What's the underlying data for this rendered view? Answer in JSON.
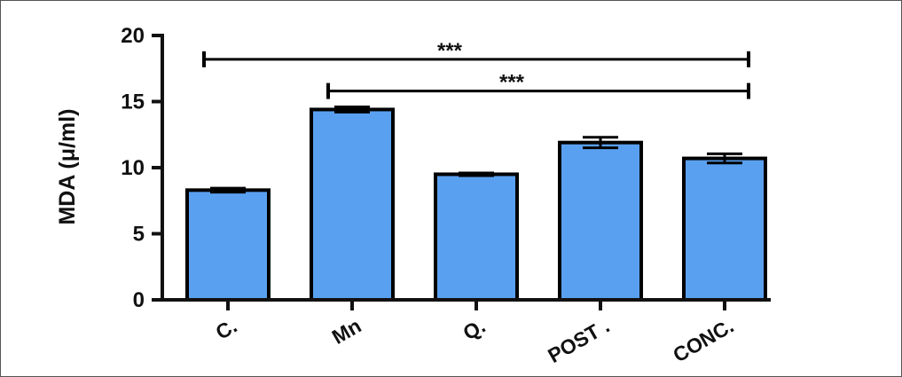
{
  "chart_data": {
    "type": "bar",
    "title": "",
    "xlabel": "",
    "ylabel": "MDA (μ/ml)",
    "ylim": [
      0,
      20
    ],
    "yticks": [
      0,
      5,
      10,
      15,
      20
    ],
    "categories": [
      "C.",
      "Mn",
      "Q.",
      "POST .",
      "CONC."
    ],
    "values": [
      8.3,
      14.4,
      9.5,
      11.9,
      10.7
    ],
    "errors": [
      0.15,
      0.2,
      0.1,
      0.4,
      0.35
    ],
    "bar_color": "#5aa0f0",
    "grid": false,
    "significance": [
      {
        "from": 0,
        "to": 4,
        "label": "***",
        "y": 18.2
      },
      {
        "from": 1,
        "to": 4,
        "label": "***",
        "y": 15.8
      }
    ]
  }
}
